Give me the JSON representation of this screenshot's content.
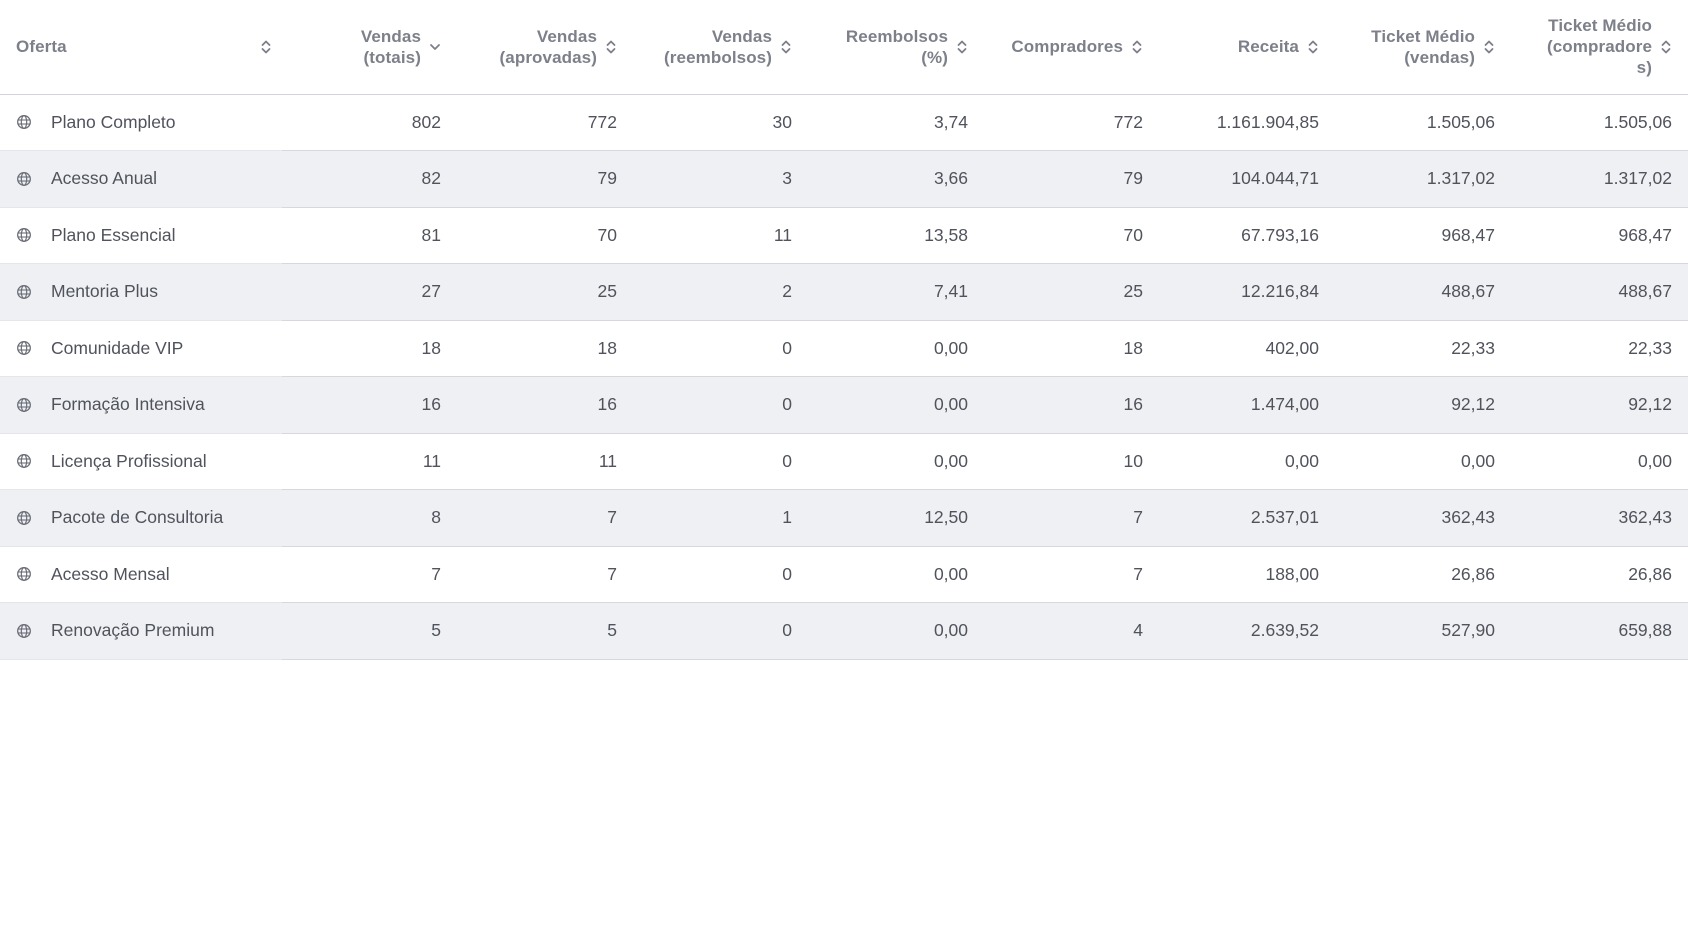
{
  "table": {
    "headers": [
      {
        "label": "Oferta",
        "sort": "both"
      },
      {
        "label": "Vendas\n(totais)",
        "sort": "desc"
      },
      {
        "label": "Vendas\n(aprovadas)",
        "sort": "both"
      },
      {
        "label": "Vendas\n(reembolsos)",
        "sort": "both"
      },
      {
        "label": "Reembolsos\n(%)",
        "sort": "both"
      },
      {
        "label": "Compradores",
        "sort": "both"
      },
      {
        "label": "Receita",
        "sort": "both"
      },
      {
        "label": "Ticket Médio\n(vendas)",
        "sort": "both"
      },
      {
        "label": "Ticket Médio\n(compradore\ns)",
        "sort": "both"
      }
    ],
    "rows": [
      {
        "oferta": "Plano Completo",
        "vendas_totais": "802",
        "vendas_aprovadas": "772",
        "vendas_reembolsos": "30",
        "reembolsos_pct": "3,74",
        "compradores": "772",
        "receita": "1.161.904,85",
        "ticket_vendas": "1.505,06",
        "ticket_compradores": "1.505,06"
      },
      {
        "oferta": "Acesso Anual",
        "vendas_totais": "82",
        "vendas_aprovadas": "79",
        "vendas_reembolsos": "3",
        "reembolsos_pct": "3,66",
        "compradores": "79",
        "receita": "104.044,71",
        "ticket_vendas": "1.317,02",
        "ticket_compradores": "1.317,02"
      },
      {
        "oferta": "Plano Essencial",
        "vendas_totais": "81",
        "vendas_aprovadas": "70",
        "vendas_reembolsos": "11",
        "reembolsos_pct": "13,58",
        "compradores": "70",
        "receita": "67.793,16",
        "ticket_vendas": "968,47",
        "ticket_compradores": "968,47"
      },
      {
        "oferta": "Mentoria Plus",
        "vendas_totais": "27",
        "vendas_aprovadas": "25",
        "vendas_reembolsos": "2",
        "reembolsos_pct": "7,41",
        "compradores": "25",
        "receita": "12.216,84",
        "ticket_vendas": "488,67",
        "ticket_compradores": "488,67"
      },
      {
        "oferta": "Comunidade VIP",
        "vendas_totais": "18",
        "vendas_aprovadas": "18",
        "vendas_reembolsos": "0",
        "reembolsos_pct": "0,00",
        "compradores": "18",
        "receita": "402,00",
        "ticket_vendas": "22,33",
        "ticket_compradores": "22,33"
      },
      {
        "oferta": "Formação Intensiva",
        "vendas_totais": "16",
        "vendas_aprovadas": "16",
        "vendas_reembolsos": "0",
        "reembolsos_pct": "0,00",
        "compradores": "16",
        "receita": "1.474,00",
        "ticket_vendas": "92,12",
        "ticket_compradores": "92,12"
      },
      {
        "oferta": "Licença Profissional",
        "vendas_totais": "11",
        "vendas_aprovadas": "11",
        "vendas_reembolsos": "0",
        "reembolsos_pct": "0,00",
        "compradores": "10",
        "receita": "0,00",
        "ticket_vendas": "0,00",
        "ticket_compradores": "0,00"
      },
      {
        "oferta": "Pacote de Consultoria",
        "vendas_totais": "8",
        "vendas_aprovadas": "7",
        "vendas_reembolsos": "1",
        "reembolsos_pct": "12,50",
        "compradores": "7",
        "receita": "2.537,01",
        "ticket_vendas": "362,43",
        "ticket_compradores": "362,43"
      },
      {
        "oferta": "Acesso Mensal",
        "vendas_totais": "7",
        "vendas_aprovadas": "7",
        "vendas_reembolsos": "0",
        "reembolsos_pct": "0,00",
        "compradores": "7",
        "receita": "188,00",
        "ticket_vendas": "26,86",
        "ticket_compradores": "26,86"
      },
      {
        "oferta": "Renovação Premium",
        "vendas_totais": "5",
        "vendas_aprovadas": "5",
        "vendas_reembolsos": "0",
        "reembolsos_pct": "0,00",
        "compradores": "4",
        "receita": "2.639,52",
        "ticket_vendas": "527,90",
        "ticket_compradores": "659,88"
      }
    ]
  },
  "icons": {
    "row_icon": "globe-icon",
    "sort_both": "sort-updown-icon",
    "sort_desc": "sort-down-icon"
  },
  "colors": {
    "header_text": "#7d808a",
    "body_text": "#50535c",
    "stripe": "#eef0f3",
    "border": "#d6d8de"
  }
}
